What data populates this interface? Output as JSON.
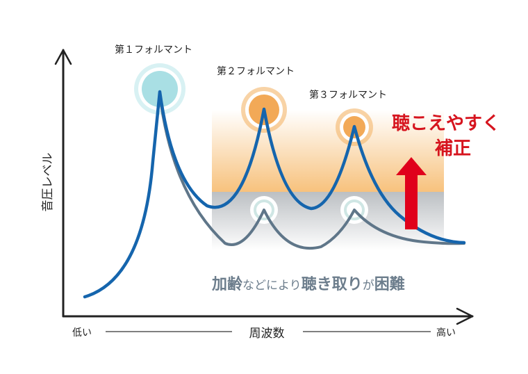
{
  "formant_labels": [
    "第１フォルマント",
    "第２フォルマント",
    "第３フォルマント"
  ],
  "correction_text": [
    "聴こえやすく",
    "補正"
  ],
  "difficulty_text": {
    "p1": "加齢",
    "p2": "などにより",
    "p3": "聴き取り",
    "p4": "が",
    "p5": "困難"
  },
  "axes": {
    "ylabel": "音圧レベル",
    "xlabel": "周波数",
    "x_low": "低い",
    "x_high": "高い"
  },
  "colors": {
    "corrected_curve": "#1565ad",
    "original_curve": "#5f7689",
    "correction_text": "#d6141e",
    "arrow": "#e0001b",
    "difficulty_text": "#6c7d8c",
    "orange_band": "#f6b766",
    "gray_band": "#b8bcc0",
    "formant1_fill": "#a9dfe4",
    "formant_orange_fill": "#f2a957",
    "formant_orange_ring": "#f3b56a"
  }
}
